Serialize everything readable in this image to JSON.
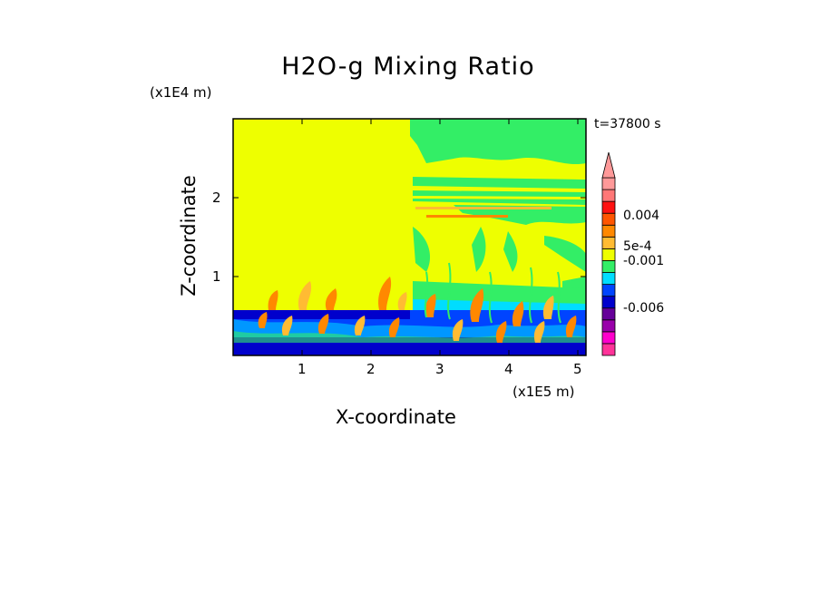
{
  "chart_data": {
    "type": "heatmap",
    "title": "H2O-g Mixing Ratio",
    "xlabel": "X-coordinate",
    "ylabel": "Z-coordinate",
    "x_unit": "(x1E5 m)",
    "z_unit": "(x1E4 m)",
    "time_label": "t=37800 s",
    "xlim": [
      0,
      5.1
    ],
    "ylim": [
      0,
      3.0
    ],
    "x_ticks": [
      "1",
      "2",
      "3",
      "4",
      "5"
    ],
    "y_ticks": [
      "1",
      "2"
    ],
    "colorbar": {
      "levels": [
        {
          "color": "#ff3399",
          "name": "magenta"
        },
        {
          "color": "#ff00cc",
          "name": "pink"
        },
        {
          "color": "#9900aa",
          "name": "purple"
        },
        {
          "color": "#660099",
          "name": "violet"
        },
        {
          "color": "#0000cc",
          "name": "dark-blue"
        },
        {
          "color": "#0044ff",
          "name": "blue"
        },
        {
          "color": "#00ddff",
          "name": "cyan"
        },
        {
          "color": "#33ee66",
          "name": "green"
        },
        {
          "color": "#eeff00",
          "name": "yellow"
        },
        {
          "color": "#ffbb33",
          "name": "light-orange"
        },
        {
          "color": "#ff8800",
          "name": "orange"
        },
        {
          "color": "#ff5500",
          "name": "dark-orange"
        },
        {
          "color": "#ff1111",
          "name": "red"
        },
        {
          "color": "#ff7777",
          "name": "salmon"
        },
        {
          "color": "#ff9999",
          "name": "light-red"
        }
      ],
      "labels": [
        "0.004",
        "5e-4",
        "-0.001",
        "-0.006"
      ],
      "extend": "max"
    },
    "regions": {
      "background": "#eeff00",
      "lower_band": "#0000cc",
      "right_upper": "#33ee66",
      "convective_plumes": "#ff8800"
    }
  }
}
